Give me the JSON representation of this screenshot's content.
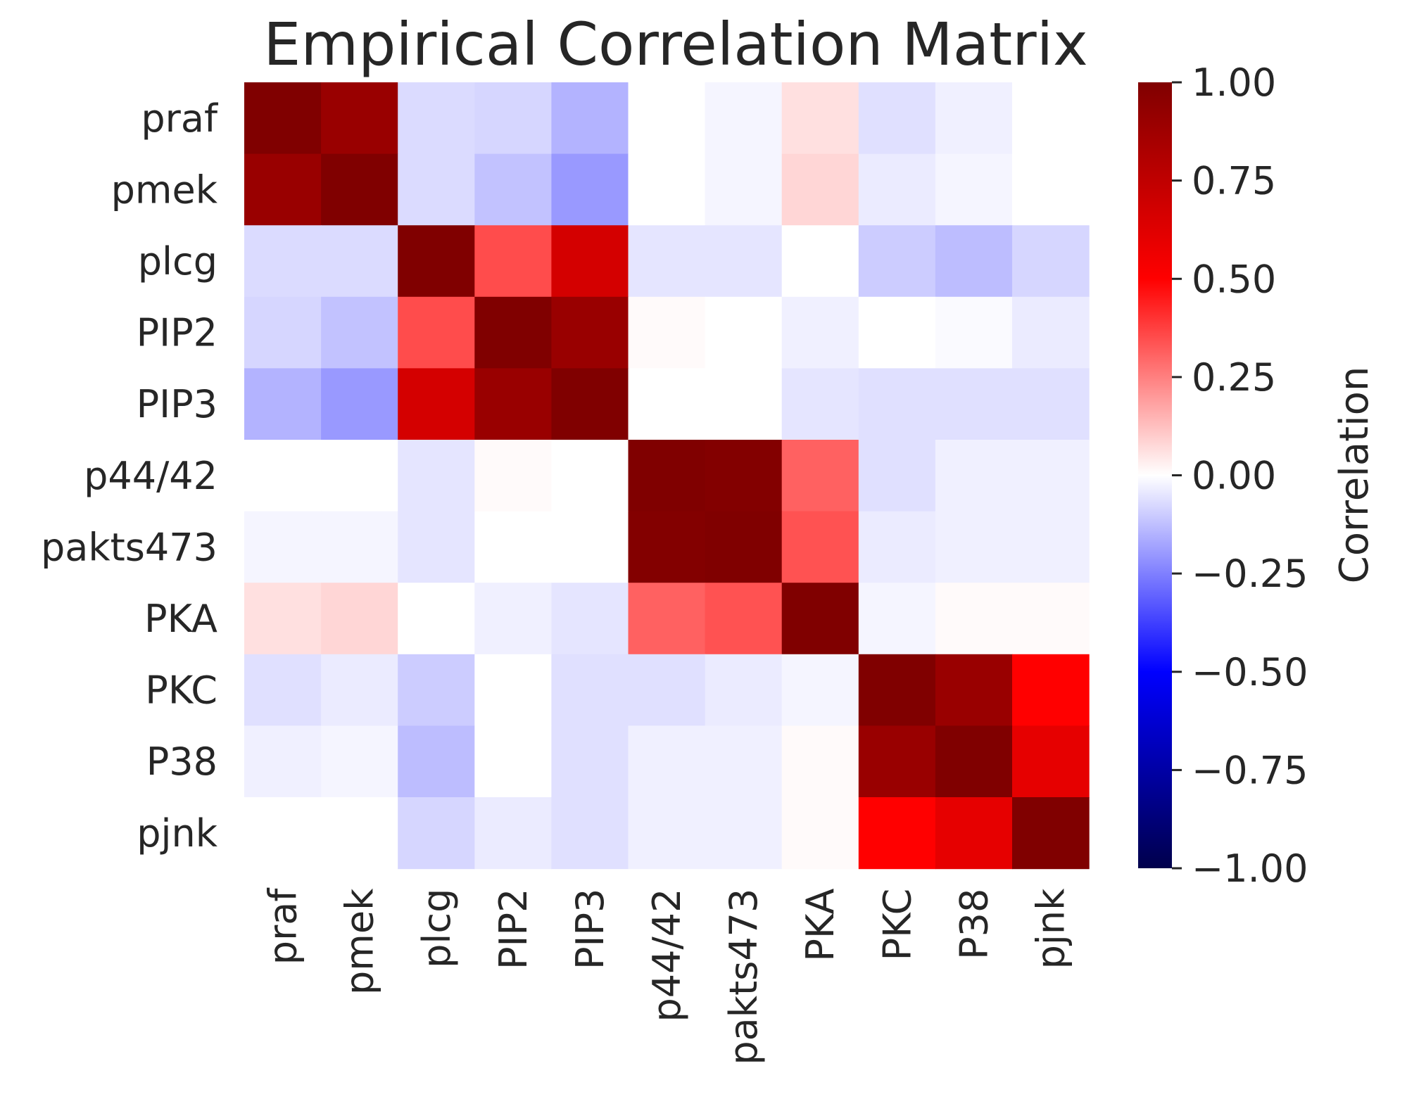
{
  "chart_data": {
    "type": "heatmap",
    "title": "Empirical Correlation Matrix",
    "row_labels": [
      "praf",
      "pmek",
      "plcg",
      "PIP2",
      "PIP3",
      "p44/42",
      "pakts473",
      "PKA",
      "PKC",
      "P38",
      "pjnk"
    ],
    "col_labels": [
      "praf",
      "pmek",
      "plcg",
      "PIP2",
      "PIP3",
      "p44/42",
      "pakts473",
      "PKA",
      "PKC",
      "P38",
      "pjnk"
    ],
    "values": [
      [
        1.0,
        0.9,
        -0.07,
        -0.08,
        -0.15,
        0.0,
        -0.02,
        0.06,
        -0.06,
        -0.03,
        0.0
      ],
      [
        0.9,
        1.0,
        -0.07,
        -0.12,
        -0.2,
        0.0,
        -0.02,
        0.08,
        -0.04,
        -0.02,
        0.0
      ],
      [
        -0.07,
        -0.07,
        1.0,
        0.35,
        0.67,
        -0.05,
        -0.05,
        0.0,
        -0.1,
        -0.13,
        -0.08
      ],
      [
        -0.08,
        -0.12,
        0.35,
        1.0,
        0.9,
        0.01,
        0.0,
        -0.03,
        0.0,
        -0.01,
        -0.04
      ],
      [
        -0.15,
        -0.2,
        0.67,
        0.9,
        1.0,
        0.0,
        0.0,
        -0.05,
        -0.06,
        -0.06,
        -0.06
      ],
      [
        0.0,
        0.0,
        -0.05,
        0.01,
        0.0,
        1.0,
        0.99,
        0.31,
        -0.06,
        -0.03,
        -0.03
      ],
      [
        -0.02,
        -0.02,
        -0.05,
        0.0,
        0.0,
        0.99,
        1.0,
        0.34,
        -0.04,
        -0.03,
        -0.03
      ],
      [
        0.06,
        0.08,
        0.0,
        -0.03,
        -0.05,
        0.31,
        0.34,
        1.0,
        -0.02,
        0.01,
        0.01
      ],
      [
        -0.06,
        -0.04,
        -0.1,
        0.0,
        -0.06,
        -0.06,
        -0.04,
        -0.02,
        1.0,
        0.9,
        0.5
      ],
      [
        -0.03,
        -0.02,
        -0.13,
        0.0,
        -0.06,
        -0.03,
        -0.03,
        0.01,
        0.9,
        1.0,
        0.6
      ],
      [
        0.0,
        0.0,
        -0.08,
        -0.04,
        -0.06,
        -0.03,
        -0.03,
        0.01,
        0.5,
        0.6,
        1.0
      ]
    ],
    "vmin": -1.0,
    "vmax": 1.0,
    "colormap": "seismic",
    "colorbar": {
      "label": "Correlation",
      "ticks": [
        1.0,
        0.75,
        0.5,
        0.25,
        0.0,
        -0.25,
        -0.5,
        -0.75,
        -1.0
      ],
      "tick_labels": [
        "1.00",
        "0.75",
        "0.50",
        "0.25",
        "0.00",
        "−0.25",
        "−0.50",
        "−0.75",
        "−1.00"
      ]
    }
  }
}
